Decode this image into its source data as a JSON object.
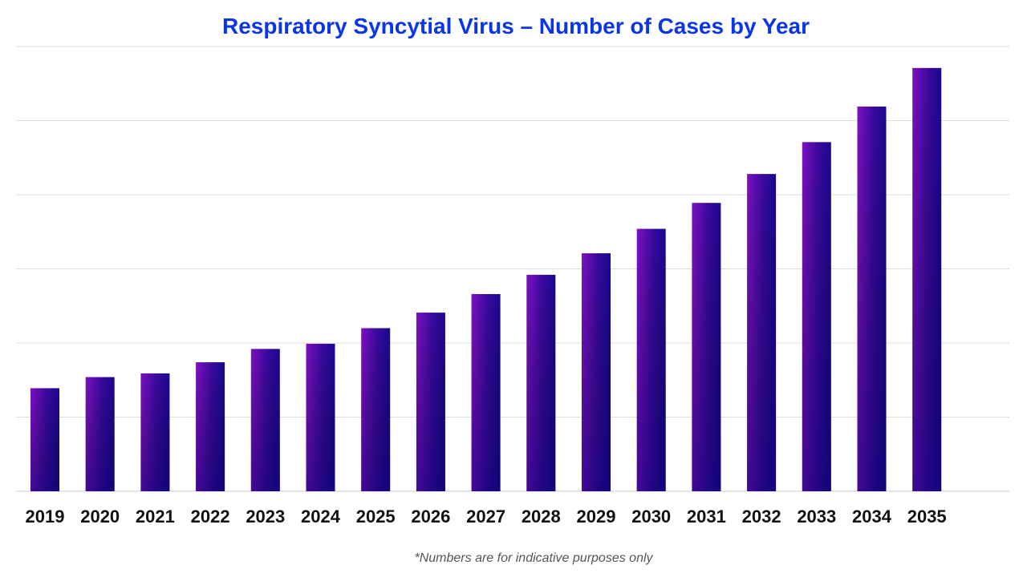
{
  "colors": {
    "title": "#0a35e8",
    "bar_left": "#7d10c4",
    "bar_right": "#1a0890",
    "bar_bottom": "#0b0570",
    "grid": "#dddddd"
  },
  "chart_data": {
    "type": "bar",
    "title": "Respiratory Syncytial Virus – Number of Cases by Year",
    "xlabel": "",
    "ylabel": "",
    "categories": [
      "2019",
      "2020",
      "2021",
      "2022",
      "2023",
      "2024",
      "2025",
      "2026",
      "2027",
      "2028",
      "2029",
      "2030",
      "2031",
      "2032",
      "2033",
      "2034",
      "2035"
    ],
    "values": [
      1.39,
      1.54,
      1.59,
      1.74,
      1.92,
      1.99,
      2.2,
      2.41,
      2.66,
      2.92,
      3.21,
      3.54,
      3.89,
      4.28,
      4.71,
      5.19,
      5.71
    ],
    "ylim": [
      0,
      6
    ],
    "y_ticks_labeled": false,
    "grid": true,
    "footnote": "*Numbers are for indicative purposes only"
  }
}
